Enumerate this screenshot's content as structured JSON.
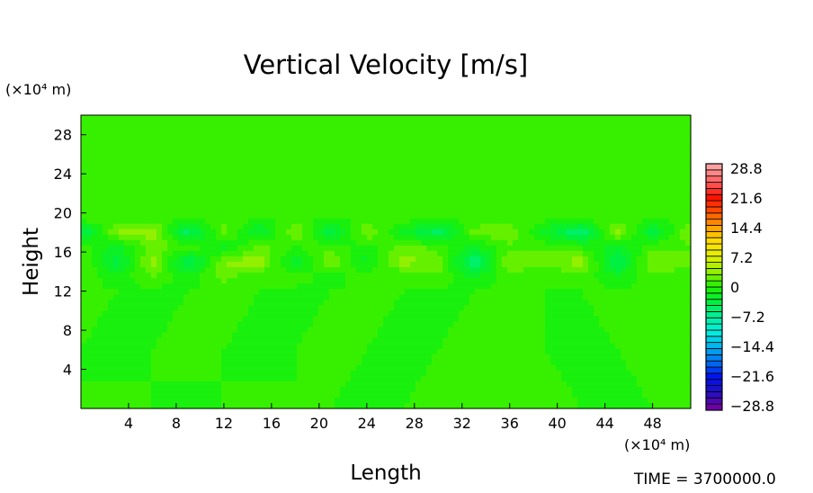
{
  "chart_data": {
    "type": "heatmap",
    "title": "Vertical Velocity [m/s]",
    "xlabel": "Length",
    "ylabel": "Height",
    "x_unit": "(×10⁴ m)",
    "y_unit": "(×10⁴ m)",
    "xlim": [
      0,
      51.2
    ],
    "ylim": [
      0,
      30
    ],
    "x_ticks": [
      4,
      8,
      12,
      16,
      20,
      24,
      28,
      32,
      36,
      40,
      44,
      48
    ],
    "y_ticks": [
      4,
      8,
      12,
      16,
      20,
      24,
      28
    ],
    "grid": false,
    "footer": "TIME = 3700000.0",
    "colorbar": {
      "placement": "right",
      "min": -28.8,
      "max": 28.8,
      "levels": 40,
      "labels": [
        "28.8",
        "21.6",
        "14.4",
        "7.2",
        "0",
        "−7.2",
        "−14.4",
        "−21.6",
        "−28.8"
      ],
      "color_stops": [
        "#7000a8",
        "#2010c0",
        "#0010f0",
        "#0070f0",
        "#00b0f0",
        "#00f0e0",
        "#00f0a0",
        "#00f040",
        "#20f000",
        "#90f000",
        "#e0f000",
        "#ffe000",
        "#ffa000",
        "#ff5000",
        "#ff1000",
        "#ff6060",
        "#ffa0a0"
      ]
    },
    "value_grid": {
      "x": [
        0,
        3,
        6,
        9,
        12,
        15,
        18,
        21,
        24,
        27,
        30,
        33,
        36,
        39,
        42,
        45,
        48,
        51
      ],
      "y": [
        0,
        6,
        12,
        13.5,
        15,
        16.5,
        18,
        19.5,
        21,
        25,
        30
      ],
      "values": [
        [
          0,
          0.5,
          0,
          -0.5,
          0,
          0.5,
          0,
          0,
          -0.5,
          0,
          0.5,
          0,
          0,
          0.5,
          0,
          -0.5,
          0,
          0
        ],
        [
          0,
          -0.5,
          0,
          0.5,
          0,
          -0.5,
          0,
          0.5,
          0,
          -0.5,
          0,
          0.5,
          0,
          0,
          -0.5,
          0,
          0.5,
          0
        ],
        [
          0.5,
          0,
          -0.5,
          0,
          0.5,
          0,
          -0.5,
          0,
          0.5,
          0,
          -0.5,
          0,
          0.5,
          0,
          0,
          0.5,
          0,
          0
        ],
        [
          1,
          -1,
          1.5,
          -1,
          2,
          0,
          1,
          -1,
          1,
          0,
          1.5,
          -2,
          1,
          0,
          1,
          -1.5,
          1,
          0.5
        ],
        [
          2,
          -4,
          4,
          -5,
          3,
          4,
          -3,
          3,
          -2,
          4,
          2,
          -6,
          3,
          2,
          4,
          -5,
          3,
          2
        ],
        [
          1,
          -2,
          2,
          1,
          -2,
          2,
          0,
          1,
          -1,
          2,
          1,
          -2,
          1,
          1,
          0,
          -2,
          1,
          1
        ],
        [
          -5,
          3,
          4,
          -5,
          2,
          -3,
          3,
          -4,
          3,
          -2,
          -5,
          2,
          3,
          -2,
          -6,
          4,
          -4,
          3
        ],
        [
          1,
          1,
          0.5,
          0,
          1,
          0,
          0.5,
          0,
          0,
          1,
          0,
          0.5,
          0,
          0.5,
          1,
          0,
          0.5,
          0
        ],
        [
          0,
          0.5,
          0,
          0,
          0.5,
          0,
          0,
          0.5,
          0,
          0,
          0.5,
          0,
          0,
          0.5,
          0,
          0,
          0.5,
          0
        ],
        [
          0,
          0,
          0.5,
          0,
          0,
          0,
          0.5,
          0,
          0,
          0,
          0,
          0.5,
          0,
          0,
          0,
          0.5,
          0,
          0
        ],
        [
          0,
          0,
          0,
          0,
          0,
          0,
          0,
          0,
          0,
          0,
          0,
          0,
          0,
          0,
          0,
          0,
          0,
          0
        ]
      ]
    }
  }
}
